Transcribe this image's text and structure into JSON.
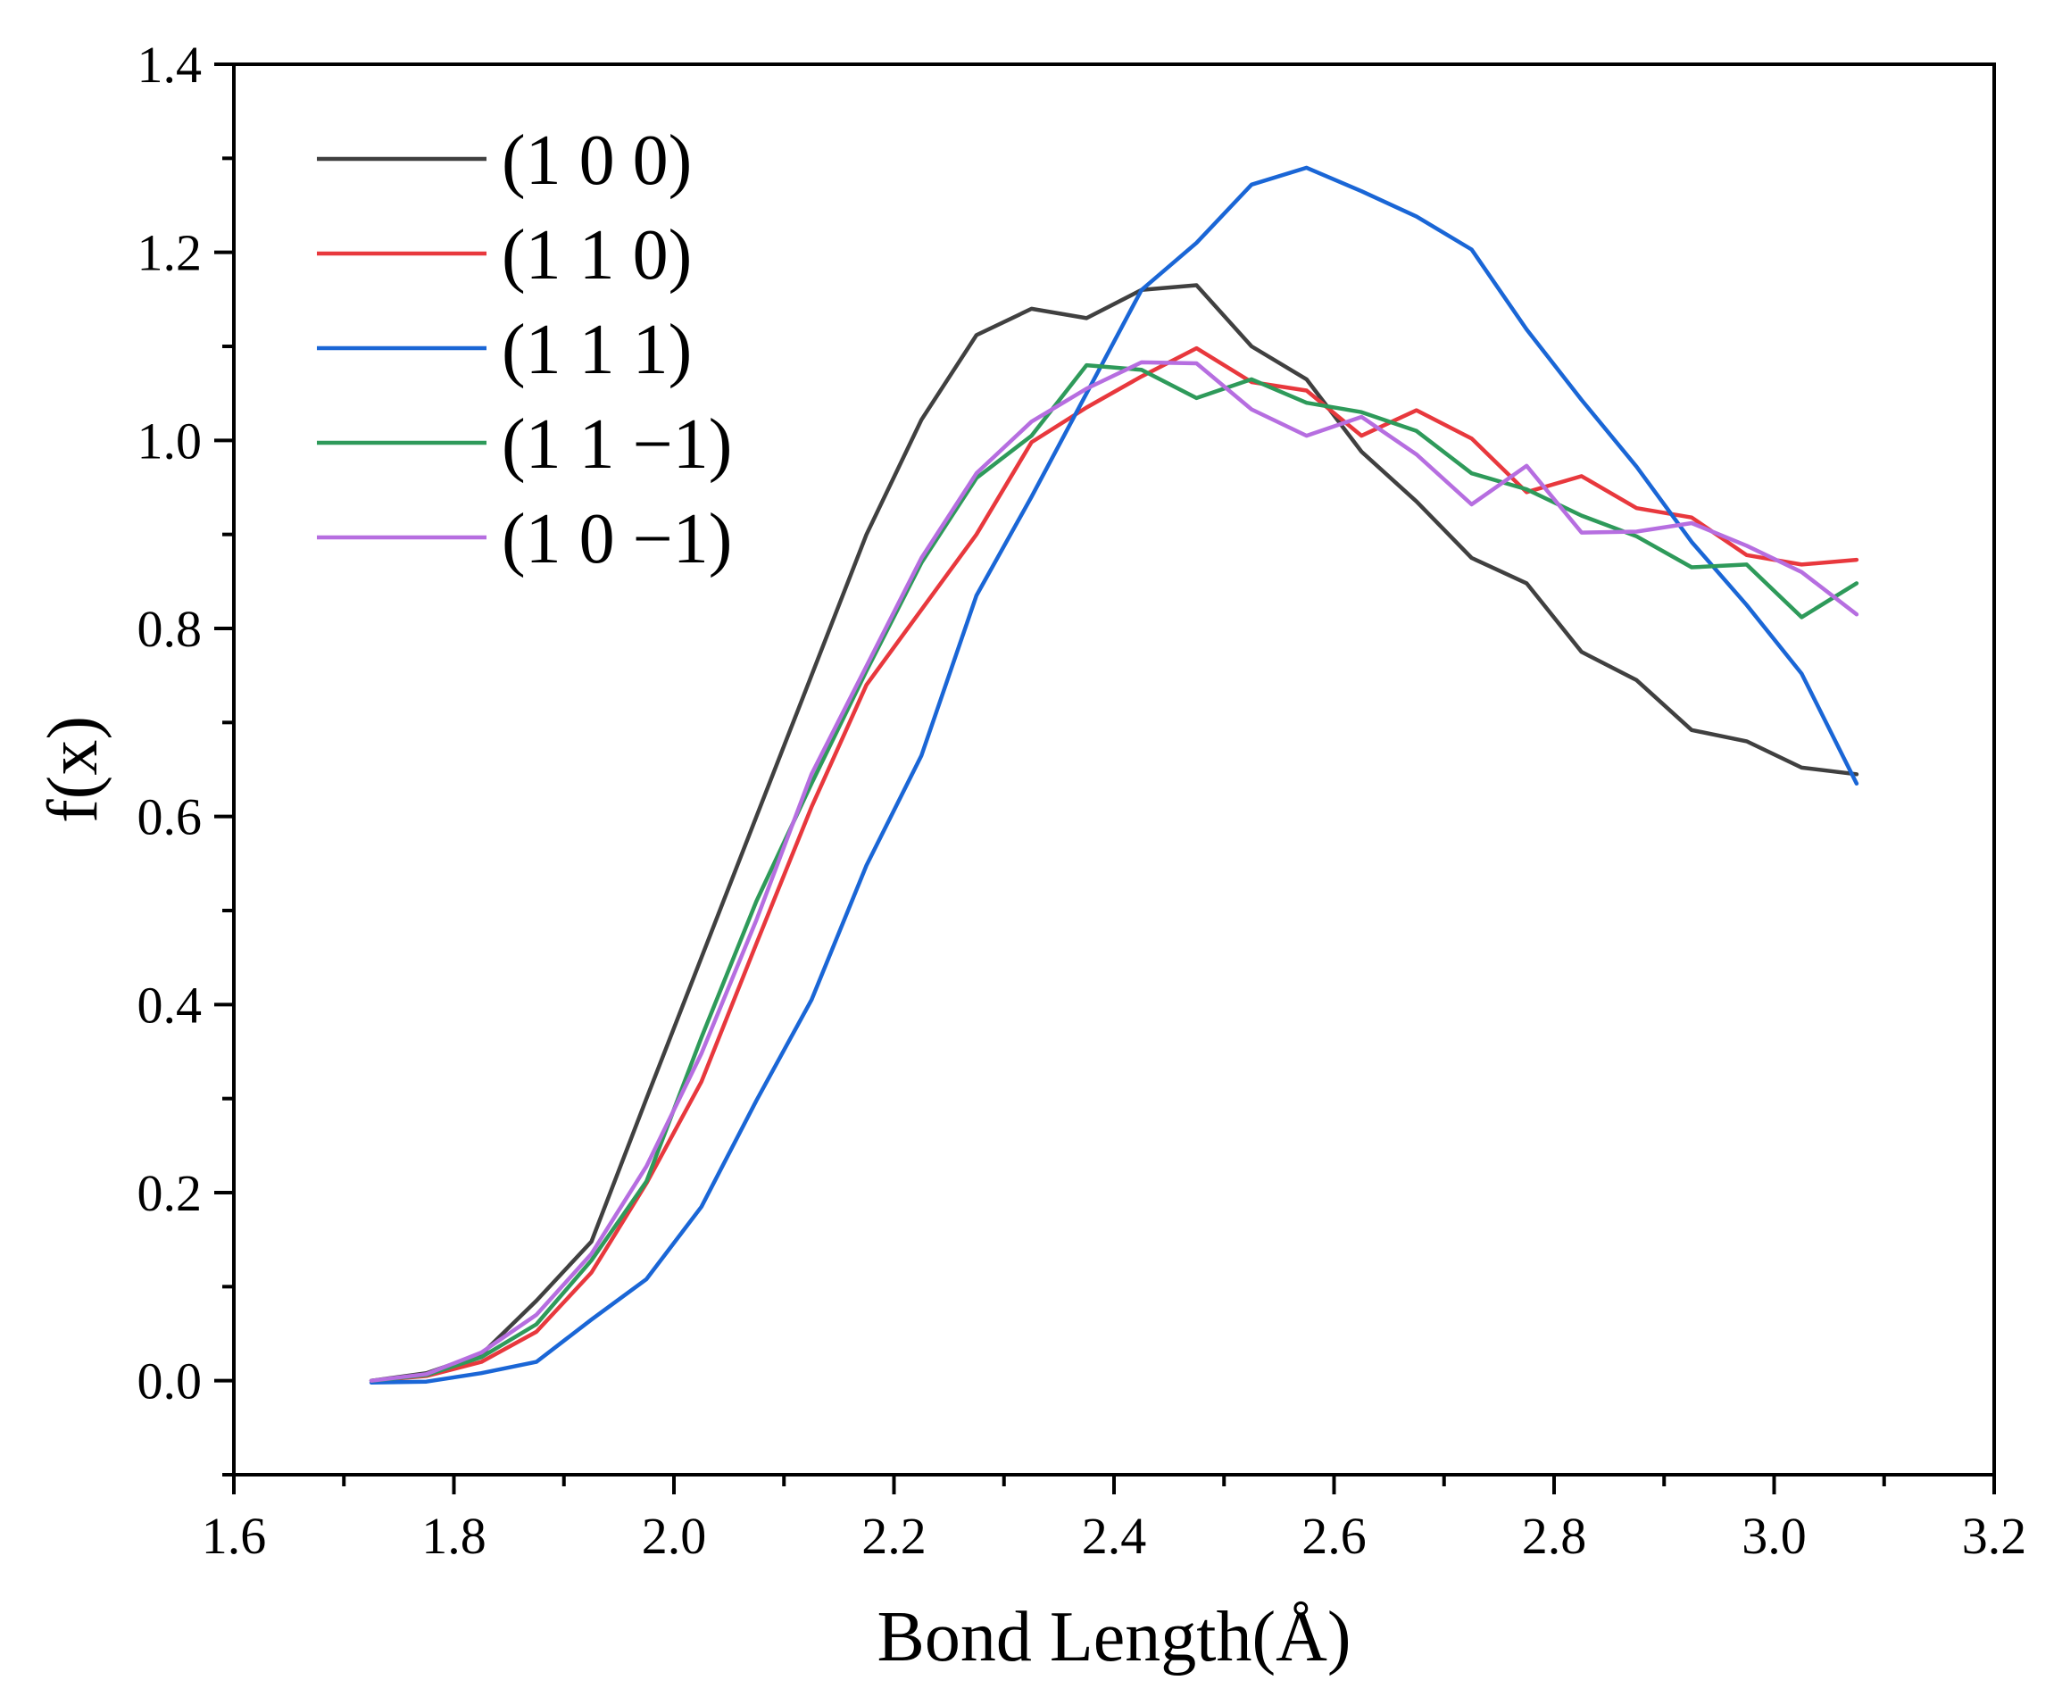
{
  "chart_data": {
    "type": "line",
    "title": "",
    "xlabel": "Bond Length(Å)",
    "ylabel": "f(x)",
    "xlim": [
      1.6,
      3.2
    ],
    "ylim": [
      -0.1,
      1.4
    ],
    "xticks": [
      1.6,
      1.8,
      2.0,
      2.2,
      2.4,
      2.6,
      2.8,
      3.0,
      3.2
    ],
    "xtick_labels": [
      "1.6",
      "1.8",
      "2.0",
      "2.2",
      "2.4",
      "2.6",
      "2.8",
      "3.0",
      "3.2"
    ],
    "yticks": [
      0.0,
      0.2,
      0.4,
      0.6,
      0.8,
      1.0,
      1.2,
      1.4
    ],
    "ytick_labels": [
      "0.0",
      "0.2",
      "0.4",
      "0.6",
      "0.8",
      "1.0",
      "1.2",
      "1.4"
    ],
    "grid": false,
    "legend_position": "top-left",
    "x": [
      1.725,
      1.775,
      1.825,
      1.875,
      1.925,
      1.975,
      2.025,
      2.075,
      2.125,
      2.175,
      2.225,
      2.275,
      2.325,
      2.375,
      2.425,
      2.475,
      2.525,
      2.575,
      2.625,
      2.675,
      2.725,
      2.775,
      2.825,
      2.875,
      2.925,
      2.975,
      3.025,
      3.075
    ],
    "series": [
      {
        "name": "(1 0 0)",
        "color": "#404040",
        "values": [
          0.0,
          0.008,
          0.028,
          0.085,
          0.148,
          0.3,
          0.45,
          0.6,
          0.75,
          0.9,
          1.022,
          1.112,
          1.14,
          1.13,
          1.16,
          1.165,
          1.1,
          1.065,
          0.988,
          0.935,
          0.875,
          0.848,
          0.775,
          0.745,
          0.692,
          0.68,
          0.652,
          0.645
        ]
      },
      {
        "name": "(1 1 0)",
        "color": "#e8383d",
        "values": [
          0.0,
          0.005,
          0.02,
          0.052,
          0.115,
          0.21,
          0.318,
          0.465,
          0.61,
          0.74,
          0.82,
          0.9,
          0.998,
          1.035,
          1.068,
          1.098,
          1.062,
          1.053,
          1.005,
          1.032,
          1.002,
          0.945,
          0.962,
          0.928,
          0.918,
          0.878,
          0.868,
          0.873
        ]
      },
      {
        "name": "(1 1 1)",
        "color": "#1a66d6",
        "values": [
          -0.002,
          -0.001,
          0.008,
          0.02,
          0.065,
          0.108,
          0.185,
          0.298,
          0.405,
          0.548,
          0.665,
          0.835,
          0.94,
          1.05,
          1.16,
          1.21,
          1.272,
          1.29,
          1.265,
          1.238,
          1.203,
          1.118,
          1.043,
          0.972,
          0.892,
          0.825,
          0.752,
          0.635
        ]
      },
      {
        "name": "(1 1 −1)",
        "color": "#2e9a5a",
        "values": [
          0.0,
          0.006,
          0.025,
          0.06,
          0.128,
          0.212,
          0.365,
          0.51,
          0.635,
          0.755,
          0.87,
          0.96,
          1.005,
          1.08,
          1.075,
          1.045,
          1.065,
          1.04,
          1.03,
          1.01,
          0.965,
          0.948,
          0.92,
          0.898,
          0.865,
          0.868,
          0.812,
          0.848
        ]
      },
      {
        "name": "(1 0 −1)",
        "color": "#b66ee0",
        "values": [
          0.0,
          0.007,
          0.03,
          0.07,
          0.135,
          0.228,
          0.348,
          0.49,
          0.645,
          0.76,
          0.875,
          0.965,
          1.02,
          1.055,
          1.083,
          1.082,
          1.033,
          1.005,
          1.025,
          0.985,
          0.932,
          0.973,
          0.902,
          0.903,
          0.912,
          0.888,
          0.86,
          0.815
        ]
      }
    ]
  }
}
